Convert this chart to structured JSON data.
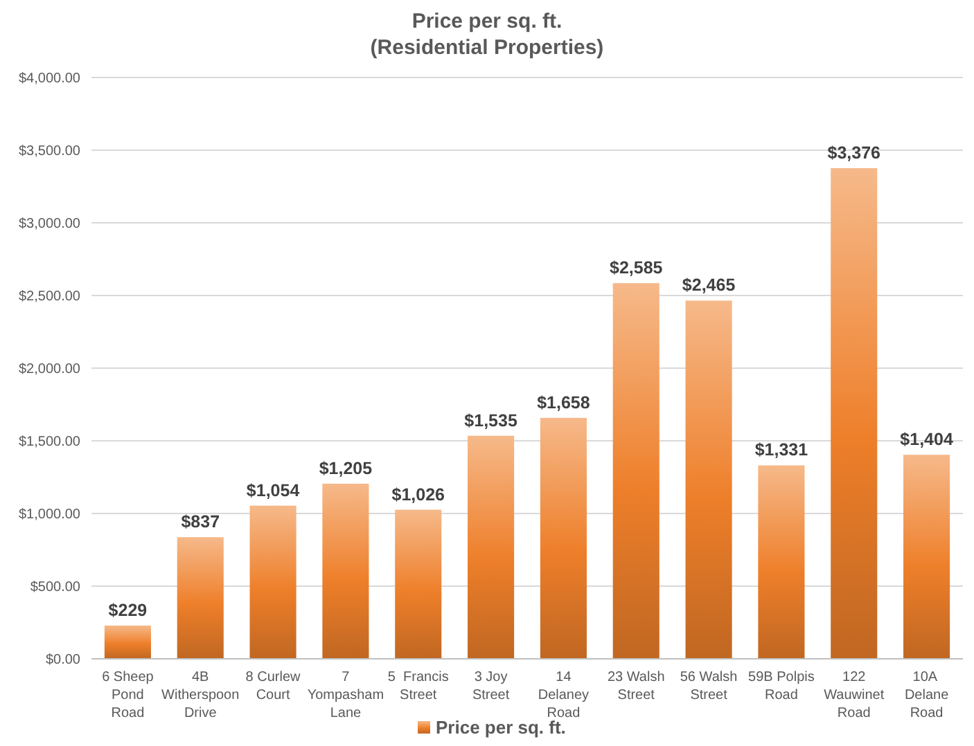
{
  "chart_data": {
    "type": "bar",
    "title": "Price per sq. ft.\n(Residential Properties)",
    "categories": [
      "6 Sheep Pond Road",
      "4B Witherspoon Drive",
      "8 Curlew Court",
      "7 Yompasham Lane",
      "5  Francis Street",
      "3 Joy Street",
      "14 Delaney Road",
      "23 Walsh Street",
      "56 Walsh Street",
      "59B Polpis Road",
      "122 Wauwinet Road",
      "10A  Delane Road"
    ],
    "series": [
      {
        "name": "Price per sq. ft.",
        "color": "#ee7f2a",
        "values": [
          229,
          837,
          1054,
          1205,
          1026,
          1535,
          1658,
          2585,
          2465,
          1331,
          3376,
          1404
        ],
        "value_labels": [
          "$229",
          "$837",
          "$1,054",
          "$1,205",
          "$1,026",
          "$1,535",
          "$1,658",
          "$2,585",
          "$2,465",
          "$1,331",
          "$3,376",
          "$1,404"
        ]
      }
    ],
    "ylim": [
      0,
      4000
    ],
    "yticks": [
      {
        "value": 0,
        "label": "$0.00"
      },
      {
        "value": 500,
        "label": "$500.00"
      },
      {
        "value": 1000,
        "label": "$1,000.00"
      },
      {
        "value": 1500,
        "label": "$1,500.00"
      },
      {
        "value": 2000,
        "label": "$2,000.00"
      },
      {
        "value": 2500,
        "label": "$2,500.00"
      },
      {
        "value": 3000,
        "label": "$3,000.00"
      },
      {
        "value": 3500,
        "label": "$3,500.00"
      },
      {
        "value": 4000,
        "label": "$4,000.00"
      }
    ],
    "grid": "y",
    "legend": "bottom"
  }
}
